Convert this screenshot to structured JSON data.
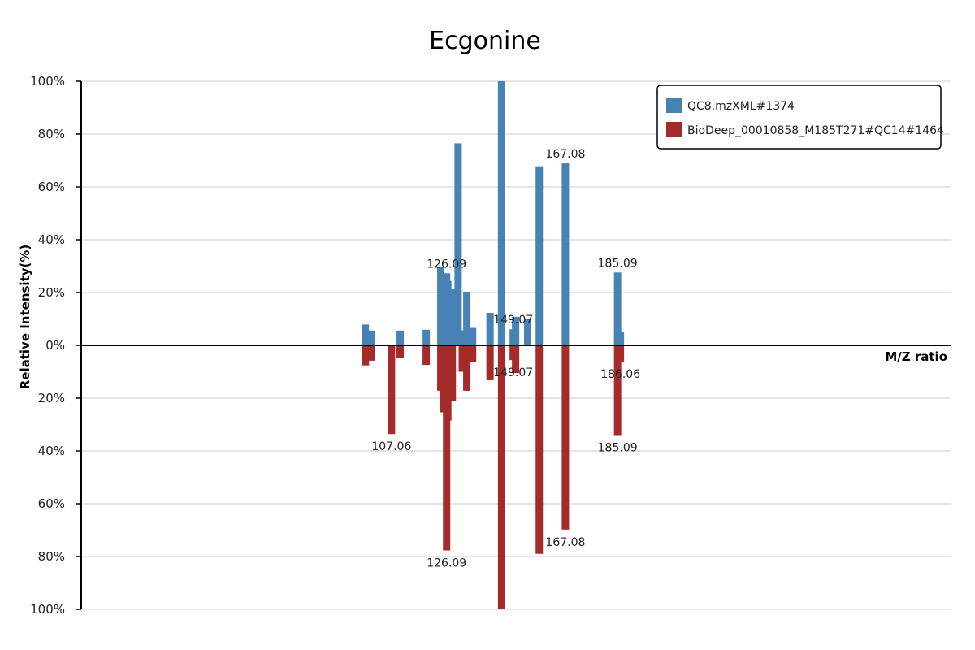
{
  "chart_data": {
    "type": "bar",
    "title": "Ecgonine",
    "xlabel": "M/Z ratio",
    "ylabel": "Relative Intensity(%)",
    "ylim": [
      -100,
      100
    ],
    "xlim": [
      0,
      300
    ],
    "y_ticks": [
      "100%",
      "80%",
      "60%",
      "40%",
      "20%",
      "0%",
      "20%",
      "40%",
      "60%",
      "80%",
      "100%"
    ],
    "grid": true,
    "legend_position": "top-right",
    "series": [
      {
        "name": "QC8.mzXML#1374",
        "color": "#4682b4",
        "direction": "up",
        "mz": [
          98.06,
          100.08,
          110.06,
          119.05,
          124.08,
          125.07,
          126.09,
          126.5,
          128.05,
          130.06,
          131.5,
          133.06,
          135.06,
          141.07,
          145.06,
          149.07,
          149.9,
          154.07,
          158.06,
          167.08,
          185.09,
          186.06
        ],
        "intensity": [
          7.9,
          5.6,
          5.6,
          5.9,
          29.9,
          21.3,
          27.3,
          24.4,
          21.2,
          76.5,
          5.7,
          20.3,
          6.6,
          12.3,
          100,
          6.1,
          10.8,
          10.2,
          67.8,
          68.9,
          27.6,
          5.0
        ]
      },
      {
        "name": "BioDeep_00010858_M185T271#QC14#1464",
        "color": "#a52a2a",
        "direction": "down",
        "mz": [
          98.06,
          100.08,
          110.06,
          119.05,
          107.06,
          124.08,
          125.07,
          126.5,
          128.05,
          126.09,
          131.5,
          133.06,
          135.06,
          141.07,
          145.06,
          149.07,
          149.9,
          158.06,
          167.08,
          185.09,
          186.06
        ],
        "intensity": [
          7.6,
          5.8,
          4.8,
          7.4,
          33.6,
          17.2,
          25.4,
          28.5,
          21.2,
          77.7,
          10.0,
          17.2,
          6.2,
          13.2,
          100,
          5.6,
          10.5,
          79.0,
          69.8,
          34.0,
          6.2
        ]
      }
    ],
    "peak_labels_top": [
      "149.07",
      "126.09",
      "167.08",
      "185.09"
    ],
    "peak_labels_bottom": [
      "107.06",
      "186.06",
      "126.09",
      "167.08",
      "185.09",
      "149.07"
    ]
  }
}
